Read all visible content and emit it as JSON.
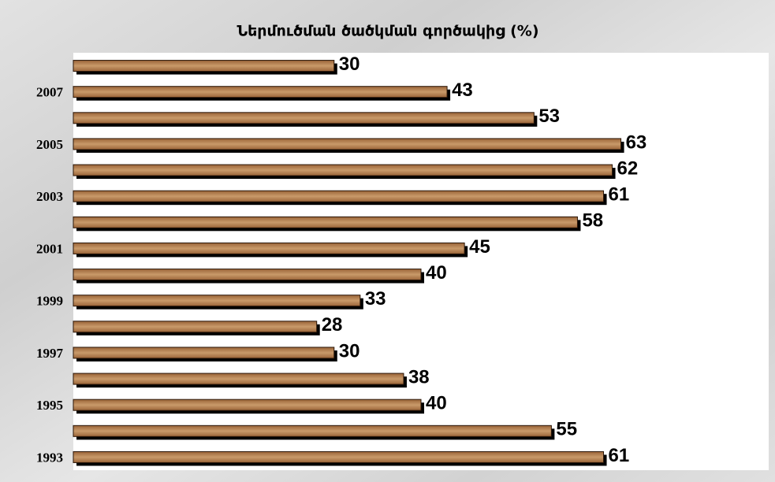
{
  "chart_data": {
    "type": "bar",
    "orientation": "horizontal",
    "title": "Ներմուծման ծածկման գործակից (%)",
    "categories": [
      null,
      "2007",
      null,
      "2005",
      null,
      "2003",
      null,
      "2001",
      null,
      "1999",
      null,
      "1997",
      null,
      "1995",
      null,
      "1993"
    ],
    "values": [
      30,
      43,
      53,
      63,
      62,
      61,
      58,
      45,
      40,
      33,
      28,
      30,
      38,
      40,
      55,
      61
    ],
    "color": "#9a6438",
    "xlim": [
      0,
      80
    ]
  }
}
